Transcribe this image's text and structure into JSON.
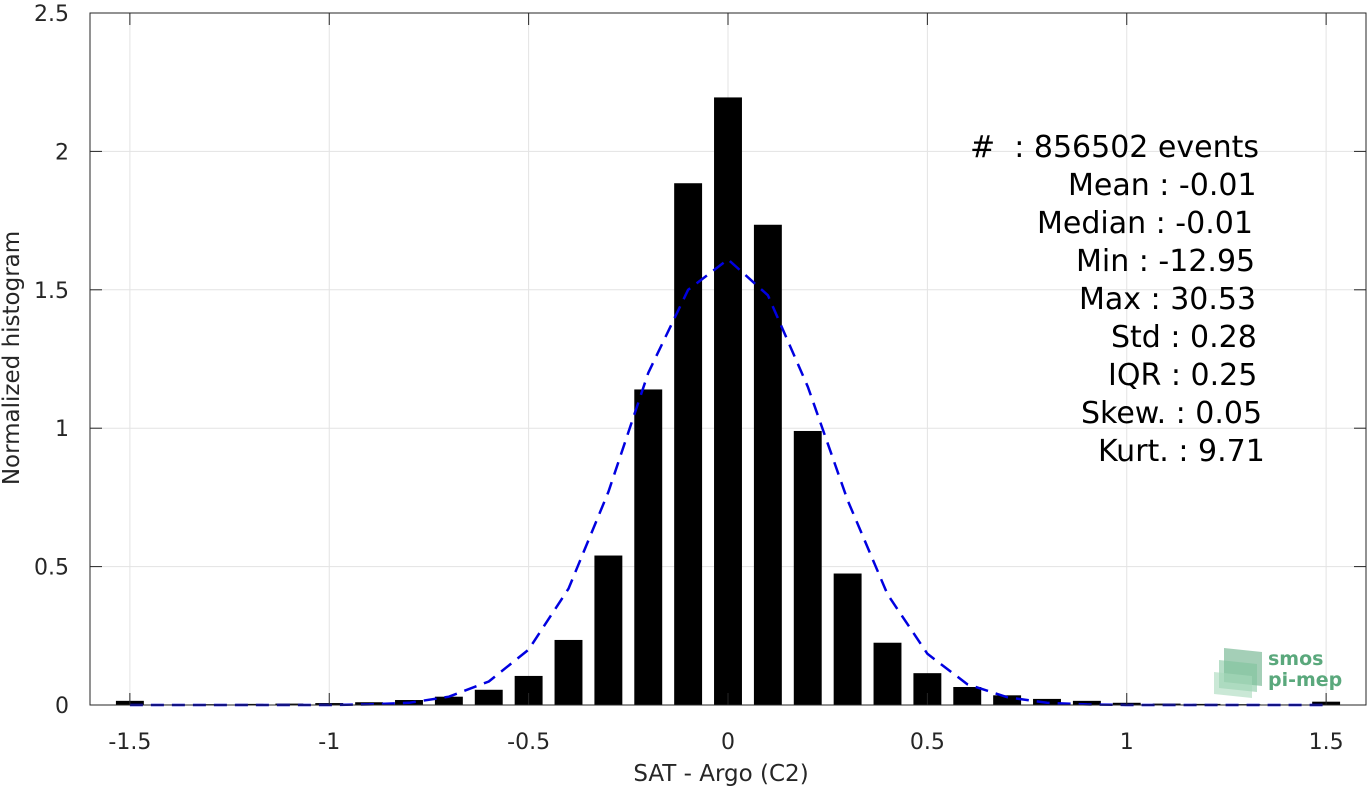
{
  "chart_data": {
    "type": "bar",
    "xlabel": "SAT - Argo (C2)",
    "ylabel": "Normalized histogram",
    "xlim": [
      -1.6,
      1.6
    ],
    "ylim": [
      0,
      2.5
    ],
    "xticks": [
      -1.5,
      -1,
      -0.5,
      0,
      0.5,
      1,
      1.5
    ],
    "xtick_labels": [
      "-1.5",
      "-1",
      "-0.5",
      "0",
      "0.5",
      "1",
      "1.5"
    ],
    "yticks": [
      0,
      0.5,
      1,
      1.5,
      2,
      2.5
    ],
    "ytick_labels": [
      "0",
      "0.5",
      "1",
      "1.5",
      "2",
      "2.5"
    ],
    "grid": true,
    "bar_color": "#000000",
    "bar_width": 0.07,
    "bars": {
      "x": [
        -1.5,
        -1.4,
        -1.3,
        -1.2,
        -1.1,
        -1.0,
        -0.9,
        -0.8,
        -0.7,
        -0.6,
        -0.5,
        -0.4,
        -0.3,
        -0.2,
        -0.1,
        0.0,
        0.1,
        0.2,
        0.3,
        0.4,
        0.5,
        0.6,
        0.7,
        0.8,
        0.9,
        1.0,
        1.1,
        1.2,
        1.3,
        1.4,
        1.5
      ],
      "values": [
        0.015,
        0.002,
        0.003,
        0.004,
        0.005,
        0.007,
        0.01,
        0.018,
        0.03,
        0.055,
        0.105,
        0.235,
        0.54,
        1.14,
        1.885,
        2.195,
        1.735,
        0.99,
        0.475,
        0.225,
        0.115,
        0.065,
        0.035,
        0.022,
        0.015,
        0.008,
        0.005,
        0.004,
        0.003,
        0.002,
        0.012
      ]
    },
    "fit_curve": {
      "style": "dashed",
      "color": "#0000e0",
      "x": [
        -1.5,
        -1.4,
        -1.3,
        -1.2,
        -1.1,
        -1.0,
        -0.9,
        -0.8,
        -0.7,
        -0.6,
        -0.5,
        -0.4,
        -0.3,
        -0.2,
        -0.1,
        0.0,
        0.1,
        0.2,
        0.3,
        0.4,
        0.5,
        0.6,
        0.7,
        0.8,
        0.9,
        1.0,
        1.1,
        1.2,
        1.3,
        1.4,
        1.5
      ],
      "y": [
        0.0,
        0.0,
        0.0,
        0.0,
        0.0,
        0.0,
        0.002,
        0.008,
        0.03,
        0.085,
        0.2,
        0.42,
        0.77,
        1.2,
        1.5,
        1.61,
        1.48,
        1.15,
        0.74,
        0.4,
        0.185,
        0.075,
        0.028,
        0.008,
        0.002,
        0.0,
        0.0,
        0.0,
        0.0,
        0.0,
        0.0
      ]
    },
    "stats": [
      {
        "label": "#  : 856502 events"
      },
      {
        "label": "Mean : -0.01"
      },
      {
        "label": "Median : -0.01"
      },
      {
        "label": "Min : -12.95"
      },
      {
        "label": "Max : 30.53"
      },
      {
        "label": "Std : 0.28"
      },
      {
        "label": "IQR : 0.25"
      },
      {
        "label": "Skew. : 0.05"
      },
      {
        "label": "Kurt. : 9.71"
      }
    ]
  },
  "logo": {
    "line1": "smos",
    "line2": "pi-mep",
    "color": "#5aa87c"
  }
}
